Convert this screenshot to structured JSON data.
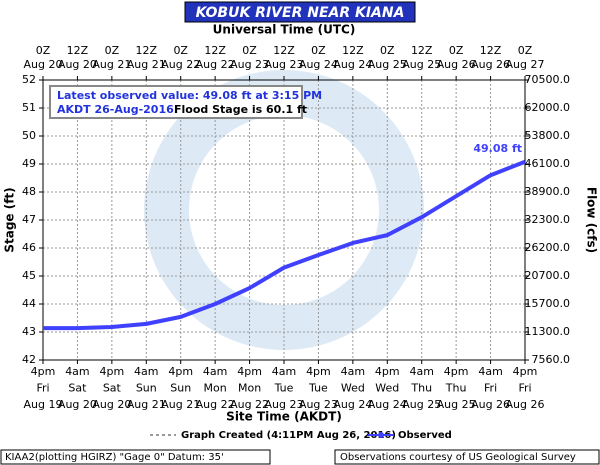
{
  "chart_data": {
    "type": "line",
    "title": "KOBUK RIVER NEAR KIANA",
    "top_axis_label": "Universal Time (UTC)",
    "top_ticks": [
      [
        "0Z",
        "Aug 20"
      ],
      [
        "12Z",
        "Aug 20"
      ],
      [
        "0Z",
        "Aug 21"
      ],
      [
        "12Z",
        "Aug 21"
      ],
      [
        "0Z",
        "Aug 22"
      ],
      [
        "12Z",
        "Aug 22"
      ],
      [
        "0Z",
        "Aug 23"
      ],
      [
        "12Z",
        "Aug 23"
      ],
      [
        "0Z",
        "Aug 24"
      ],
      [
        "12Z",
        "Aug 24"
      ],
      [
        "0Z",
        "Aug 25"
      ],
      [
        "12Z",
        "Aug 25"
      ],
      [
        "0Z",
        "Aug 26"
      ],
      [
        "12Z",
        "Aug 26"
      ],
      [
        "0Z",
        "Aug 27"
      ]
    ],
    "categories": [
      [
        "4pm",
        "Fri",
        "Aug 19"
      ],
      [
        "4am",
        "Sat",
        "Aug 20"
      ],
      [
        "4pm",
        "Sat",
        "Aug 20"
      ],
      [
        "4am",
        "Sun",
        "Aug 21"
      ],
      [
        "4pm",
        "Sun",
        "Aug 21"
      ],
      [
        "4am",
        "Mon",
        "Aug 22"
      ],
      [
        "4pm",
        "Mon",
        "Aug 22"
      ],
      [
        "4am",
        "Tue",
        "Aug 23"
      ],
      [
        "4pm",
        "Tue",
        "Aug 23"
      ],
      [
        "4am",
        "Wed",
        "Aug 24"
      ],
      [
        "4pm",
        "Wed",
        "Aug 24"
      ],
      [
        "4am",
        "Thu",
        "Aug 25"
      ],
      [
        "4pm",
        "Thu",
        "Aug 25"
      ],
      [
        "4am",
        "Fri",
        "Aug 26"
      ],
      [
        "4pm",
        "Fri",
        "Aug 26"
      ]
    ],
    "x_label": "Site Time (AKDT)",
    "y_label": "Stage (ft)",
    "y2_label": "Flow (cfs)",
    "ylim": [
      42,
      52
    ],
    "yticks": [
      42,
      43,
      44,
      45,
      46,
      47,
      48,
      49,
      50,
      51,
      52
    ],
    "y2ticks": [
      {
        "value": 7560,
        "label": "7560.0"
      },
      {
        "value": 11300,
        "label": "11300.0"
      },
      {
        "value": 15700,
        "label": "15700.0"
      },
      {
        "value": 20700,
        "label": "20700.0"
      },
      {
        "value": 26200,
        "label": "26200.0"
      },
      {
        "value": 32300,
        "label": "32300.0"
      },
      {
        "value": 38900,
        "label": "38900.0"
      },
      {
        "value": 46100,
        "label": "46100.0"
      },
      {
        "value": 53800,
        "label": "53800.0"
      },
      {
        "value": 62000,
        "label": "62000.0"
      },
      {
        "value": 70500,
        "label": "70500.0"
      }
    ],
    "grid": true,
    "series": [
      {
        "name": "Observed",
        "color": "#4040ff",
        "values": [
          43.14,
          43.14,
          43.18,
          43.29,
          43.54,
          44.0,
          44.57,
          45.3,
          45.75,
          46.18,
          46.46,
          47.1,
          47.85,
          48.6,
          49.08
        ],
        "value_labels": [
          null,
          null,
          null,
          null,
          null,
          null,
          null,
          null,
          null,
          null,
          null,
          null,
          null,
          null,
          "49.08 ft"
        ]
      }
    ],
    "annotation": {
      "line1": "Latest observed value: 49.08 ft at 3:15 PM",
      "line2": "AKDT 26-Aug-2016.",
      "flood_stage": "Flood Stage is 60.1 ft"
    },
    "created_label": "Graph Created (4:11PM Aug 26, 2016)",
    "footer_left": "KIAA2(plotting HGIRZ) \"Gage 0\" Datum: 35'",
    "footer_right": "Observations courtesy of US Geological Survey"
  }
}
